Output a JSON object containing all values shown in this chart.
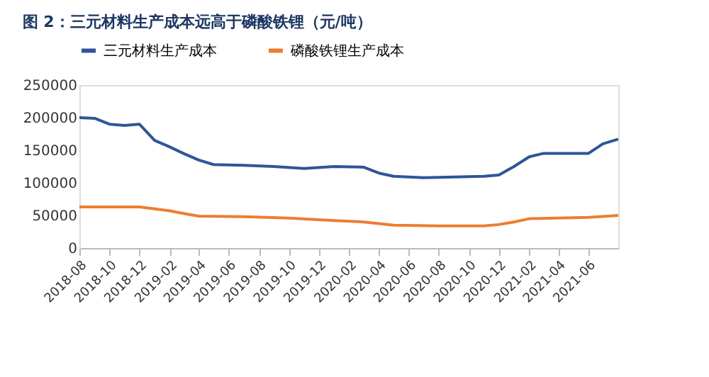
{
  "chart_data": {
    "type": "line",
    "title": "图 2：三元材料生产成本远高于磷酸铁锂（元/吨）",
    "series": [
      {
        "name": "三元材料生产成本",
        "color": "#2f5597",
        "x": [
          "2018-08",
          "2018-09",
          "2018-10",
          "2018-11",
          "2018-12",
          "2019-01",
          "2019-02",
          "2019-03",
          "2019-04",
          "2019-05",
          "2019-07",
          "2019-09",
          "2019-11",
          "2020-01",
          "2020-03",
          "2020-04",
          "2020-05",
          "2020-07",
          "2020-09",
          "2020-11",
          "2020-12",
          "2021-01",
          "2021-02",
          "2021-03",
          "2021-06",
          "2021-07",
          "2021-08"
        ],
        "values": [
          200000,
          199000,
          190000,
          188000,
          190000,
          165000,
          155000,
          145000,
          135000,
          128000,
          127000,
          125000,
          122000,
          125000,
          124000,
          115000,
          110000,
          108000,
          109000,
          110000,
          112000,
          125000,
          140000,
          145000,
          145000,
          160000,
          167000
        ]
      },
      {
        "name": "磷酸铁锂生产成本",
        "color": "#ed7d31",
        "x": [
          "2018-08",
          "2018-12",
          "2019-01",
          "2019-02",
          "2019-03",
          "2019-04",
          "2019-07",
          "2019-10",
          "2020-01",
          "2020-03",
          "2020-05",
          "2020-08",
          "2020-11",
          "2020-12",
          "2021-01",
          "2021-02",
          "2021-06",
          "2021-08"
        ],
        "values": [
          63000,
          63000,
          60000,
          57000,
          53000,
          49000,
          48000,
          46000,
          42000,
          40000,
          35000,
          34000,
          34000,
          36000,
          40000,
          45000,
          47000,
          50000
        ]
      }
    ],
    "xlim": [
      "2018-08",
      "2021-08"
    ],
    "xticks": [
      "2018-08",
      "2018-10",
      "2018-12",
      "2019-02",
      "2019-04",
      "2019-06",
      "2019-08",
      "2019-10",
      "2019-12",
      "2020-02",
      "2020-04",
      "2020-06",
      "2020-08",
      "2020-10",
      "2020-12",
      "2021-02",
      "2021-04",
      "2021-06"
    ],
    "ylim": [
      0,
      250000
    ],
    "yticks": [
      0,
      50000,
      100000,
      150000,
      200000,
      250000
    ],
    "grid": false,
    "legend": "top",
    "marker": "none",
    "line_style": "solid"
  }
}
